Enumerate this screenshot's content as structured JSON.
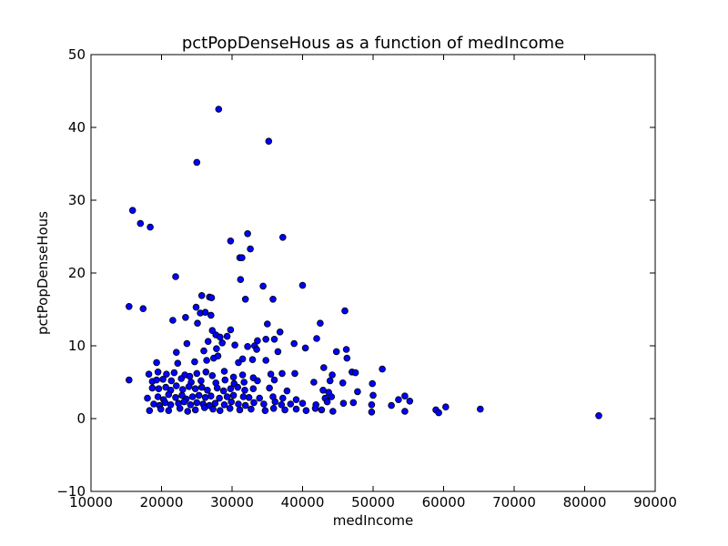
{
  "chart_data": {
    "type": "scatter",
    "title": "pctPopDenseHous as a function of medIncome",
    "xlabel": "medIncome",
    "ylabel": "pctPopDenseHous",
    "xlim": [
      10000,
      90000
    ],
    "ylim": [
      -10,
      50
    ],
    "xticks": [
      10000,
      20000,
      30000,
      40000,
      50000,
      60000,
      70000,
      80000,
      90000
    ],
    "yticks": [
      -10,
      0,
      10,
      20,
      30,
      40,
      50
    ],
    "xtick_labels": [
      "10000",
      "20000",
      "30000",
      "40000",
      "50000",
      "60000",
      "70000",
      "80000",
      "90000"
    ],
    "ytick_labels": [
      "−10",
      "0",
      "10",
      "20",
      "30",
      "40",
      "50"
    ],
    "grid": false,
    "point_color": "#0000ff",
    "series": [
      {
        "points": [
          [
            28100,
            42.5
          ],
          [
            35200,
            38.1
          ],
          [
            25000,
            35.2
          ],
          [
            15900,
            28.6
          ],
          [
            17000,
            26.8
          ],
          [
            18400,
            26.3
          ],
          [
            29800,
            24.4
          ],
          [
            32200,
            25.4
          ],
          [
            37200,
            24.9
          ],
          [
            32600,
            23.3
          ],
          [
            31100,
            22.1
          ],
          [
            31400,
            22.1
          ],
          [
            22000,
            19.5
          ],
          [
            31200,
            19.1
          ],
          [
            34400,
            18.2
          ],
          [
            40000,
            18.3
          ],
          [
            25700,
            16.9
          ],
          [
            26800,
            16.7
          ],
          [
            27100,
            16.6
          ],
          [
            31900,
            16.4
          ],
          [
            35800,
            16.4
          ],
          [
            15400,
            15.4
          ],
          [
            17400,
            15.1
          ],
          [
            24900,
            15.3
          ],
          [
            25500,
            14.5
          ],
          [
            26200,
            14.6
          ],
          [
            27000,
            14.2
          ],
          [
            46000,
            14.8
          ],
          [
            21600,
            13.5
          ],
          [
            23400,
            13.9
          ],
          [
            25100,
            13.1
          ],
          [
            35000,
            13.0
          ],
          [
            42500,
            13.1
          ],
          [
            27200,
            12.1
          ],
          [
            29800,
            12.2
          ],
          [
            27700,
            11.5
          ],
          [
            36800,
            11.9
          ],
          [
            28300,
            11.2
          ],
          [
            29300,
            11.3
          ],
          [
            30400,
            10.1
          ],
          [
            33600,
            10.7
          ],
          [
            34800,
            10.9
          ],
          [
            36000,
            10.9
          ],
          [
            38800,
            10.3
          ],
          [
            42000,
            11.0
          ],
          [
            26600,
            10.6
          ],
          [
            28600,
            10.4
          ],
          [
            23600,
            10.3
          ],
          [
            33200,
            10.0
          ],
          [
            22100,
            9.1
          ],
          [
            26000,
            9.3
          ],
          [
            27800,
            9.6
          ],
          [
            32200,
            9.9
          ],
          [
            33500,
            9.5
          ],
          [
            36500,
            9.2
          ],
          [
            40400,
            9.7
          ],
          [
            44800,
            9.2
          ],
          [
            46200,
            9.5
          ],
          [
            46300,
            8.3
          ],
          [
            19300,
            7.7
          ],
          [
            22300,
            7.6
          ],
          [
            24700,
            7.8
          ],
          [
            26400,
            8.0
          ],
          [
            27400,
            8.3
          ],
          [
            28000,
            8.6
          ],
          [
            30900,
            7.7
          ],
          [
            31500,
            8.2
          ],
          [
            32900,
            8.1
          ],
          [
            34800,
            8.0
          ],
          [
            43000,
            7.0
          ],
          [
            47000,
            6.4
          ],
          [
            51300,
            6.8
          ],
          [
            18200,
            6.1
          ],
          [
            19500,
            6.4
          ],
          [
            20700,
            6.1
          ],
          [
            21800,
            6.3
          ],
          [
            23300,
            6.0
          ],
          [
            24000,
            5.8
          ],
          [
            25000,
            6.2
          ],
          [
            26300,
            6.4
          ],
          [
            27200,
            5.9
          ],
          [
            28900,
            6.5
          ],
          [
            30200,
            5.7
          ],
          [
            31500,
            6.0
          ],
          [
            33000,
            5.6
          ],
          [
            35500,
            6.1
          ],
          [
            37100,
            6.2
          ],
          [
            38900,
            6.2
          ],
          [
            44200,
            6.0
          ],
          [
            47500,
            6.3
          ],
          [
            15400,
            5.3
          ],
          [
            18700,
            5.1
          ],
          [
            19300,
            5.3
          ],
          [
            20200,
            5.4
          ],
          [
            21400,
            5.2
          ],
          [
            22800,
            5.5
          ],
          [
            24200,
            5.0
          ],
          [
            25600,
            5.2
          ],
          [
            27700,
            4.9
          ],
          [
            29000,
            5.3
          ],
          [
            30300,
            4.8
          ],
          [
            31700,
            5.0
          ],
          [
            33600,
            5.2
          ],
          [
            36000,
            5.3
          ],
          [
            41600,
            5.0
          ],
          [
            43900,
            5.2
          ],
          [
            45700,
            4.9
          ],
          [
            49900,
            4.8
          ],
          [
            18700,
            4.2
          ],
          [
            19600,
            4.1
          ],
          [
            20600,
            4.3
          ],
          [
            21300,
            3.9
          ],
          [
            22100,
            4.5
          ],
          [
            23000,
            4.0
          ],
          [
            23900,
            4.4
          ],
          [
            24800,
            4.1
          ],
          [
            25700,
            4.3
          ],
          [
            26500,
            3.9
          ],
          [
            27900,
            4.2
          ],
          [
            28800,
            3.8
          ],
          [
            29800,
            4.1
          ],
          [
            30800,
            4.3
          ],
          [
            31800,
            3.9
          ],
          [
            33000,
            4.1
          ],
          [
            35300,
            4.2
          ],
          [
            37800,
            3.8
          ],
          [
            42900,
            3.9
          ],
          [
            43700,
            3.6
          ],
          [
            47800,
            3.7
          ],
          [
            18000,
            2.8
          ],
          [
            19500,
            3.0
          ],
          [
            20300,
            2.6
          ],
          [
            21000,
            3.3
          ],
          [
            22000,
            2.9
          ],
          [
            22900,
            3.2
          ],
          [
            23500,
            2.7
          ],
          [
            24400,
            3.0
          ],
          [
            25300,
            3.2
          ],
          [
            26200,
            2.9
          ],
          [
            27000,
            3.1
          ],
          [
            28200,
            2.8
          ],
          [
            29300,
            3.0
          ],
          [
            30200,
            3.2
          ],
          [
            31600,
            3.0
          ],
          [
            32400,
            2.9
          ],
          [
            33900,
            2.8
          ],
          [
            35800,
            3.0
          ],
          [
            37200,
            2.8
          ],
          [
            39100,
            2.6
          ],
          [
            43200,
            2.8
          ],
          [
            44100,
            3.0
          ],
          [
            50000,
            3.2
          ],
          [
            53600,
            2.6
          ],
          [
            54500,
            3.1
          ],
          [
            18900,
            2.0
          ],
          [
            19700,
            1.8
          ],
          [
            20500,
            2.2
          ],
          [
            21300,
            1.9
          ],
          [
            22400,
            2.1
          ],
          [
            23200,
            2.3
          ],
          [
            24100,
            1.9
          ],
          [
            25000,
            2.2
          ],
          [
            25900,
            2.0
          ],
          [
            26800,
            1.8
          ],
          [
            27600,
            2.1
          ],
          [
            28900,
            1.9
          ],
          [
            29900,
            2.3
          ],
          [
            30900,
            2.0
          ],
          [
            31900,
            1.8
          ],
          [
            33100,
            2.2
          ],
          [
            34500,
            2.0
          ],
          [
            36100,
            2.3
          ],
          [
            37000,
            1.9
          ],
          [
            38300,
            2.0
          ],
          [
            40000,
            2.1
          ],
          [
            41900,
            1.9
          ],
          [
            43500,
            2.3
          ],
          [
            45800,
            2.1
          ],
          [
            47200,
            2.2
          ],
          [
            49800,
            1.9
          ],
          [
            52600,
            1.8
          ],
          [
            55200,
            2.4
          ],
          [
            60300,
            1.6
          ],
          [
            18300,
            1.1
          ],
          [
            19900,
            1.3
          ],
          [
            21000,
            1.1
          ],
          [
            22600,
            1.4
          ],
          [
            23700,
            1.0
          ],
          [
            24800,
            1.2
          ],
          [
            26100,
            1.5
          ],
          [
            27300,
            1.3
          ],
          [
            28300,
            1.1
          ],
          [
            29700,
            1.4
          ],
          [
            31100,
            1.2
          ],
          [
            32700,
            1.3
          ],
          [
            34700,
            1.1
          ],
          [
            35900,
            1.4
          ],
          [
            37500,
            1.2
          ],
          [
            39100,
            1.3
          ],
          [
            40500,
            1.1
          ],
          [
            41800,
            1.4
          ],
          [
            42700,
            1.2
          ],
          [
            44300,
            1.0
          ],
          [
            49800,
            0.9
          ],
          [
            54500,
            1.0
          ],
          [
            58900,
            1.2
          ],
          [
            59300,
            0.8
          ],
          [
            65200,
            1.3
          ],
          [
            82000,
            0.4
          ]
        ]
      }
    ]
  }
}
